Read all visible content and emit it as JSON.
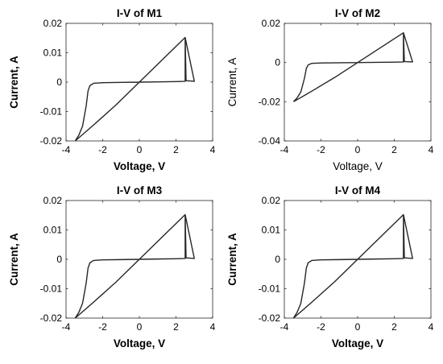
{
  "chart_data": [
    {
      "type": "line",
      "title": "I-V of M1",
      "xlabel": "Voltage, V",
      "ylabel": "Current, A",
      "xlim": [
        -4,
        4
      ],
      "ylim": [
        -0.02,
        0.02
      ],
      "xticks": [
        "-4",
        "-2",
        "0",
        "2",
        "4"
      ],
      "yticks": [
        "0.02",
        "0.01",
        "0",
        "-0.01",
        "-0.02"
      ],
      "grid": false,
      "bold_labels": true,
      "series": [
        {
          "x": [
            -3.5,
            -3.3,
            -3.1,
            -2.9,
            -2.8,
            -2.7,
            -2.5,
            -2.0,
            -1.0,
            0,
            1.0,
            2.0,
            2.5,
            2.5,
            2.55,
            3.0,
            2.5,
            1.25,
            0,
            -1.25,
            -2.5,
            -3.5
          ],
          "y": [
            -0.02,
            -0.018,
            -0.015,
            -0.008,
            -0.003,
            -0.0012,
            -0.0004,
            -0.0002,
            -0.0001,
            0,
            0.0001,
            0.0002,
            0.0003,
            0.0152,
            0.0005,
            0.0003,
            0.0152,
            0.0076,
            0,
            -0.0076,
            -0.0146,
            -0.02
          ]
        }
      ]
    },
    {
      "type": "line",
      "title": "I-V of M2",
      "xlabel": "Voltage, V",
      "ylabel": "Current, A",
      "xlim": [
        -4,
        4
      ],
      "ylim": [
        -0.04,
        0.02
      ],
      "xticks": [
        "-4",
        "-2",
        "0",
        "2",
        "4"
      ],
      "yticks": [
        "0.02",
        "0",
        "-0.02",
        "-0.04"
      ],
      "grid": false,
      "bold_labels": false,
      "series": [
        {
          "x": [
            -3.5,
            -3.3,
            -3.1,
            -2.9,
            -2.8,
            -2.7,
            -2.5,
            -2.0,
            -1.0,
            0,
            1.0,
            2.0,
            2.5,
            2.5,
            2.55,
            3.0,
            2.5,
            1.25,
            0,
            -1.25,
            -2.5,
            -3.5
          ],
          "y": [
            -0.02,
            -0.018,
            -0.015,
            -0.008,
            -0.003,
            -0.0012,
            -0.0004,
            -0.0002,
            -0.0001,
            0,
            0.0001,
            0.0002,
            0.0003,
            0.0152,
            0.0005,
            0.0003,
            0.0152,
            0.0076,
            0,
            -0.0076,
            -0.0146,
            -0.02
          ]
        }
      ]
    },
    {
      "type": "line",
      "title": "I-V of M3",
      "xlabel": "Voltage, V",
      "ylabel": "Current, A",
      "xlim": [
        -4,
        4
      ],
      "ylim": [
        -0.02,
        0.02
      ],
      "xticks": [
        "-4",
        "-2",
        "0",
        "2",
        "4"
      ],
      "yticks": [
        "0.02",
        "0.01",
        "0",
        "-0.01",
        "-0.02"
      ],
      "grid": false,
      "bold_labels": true,
      "series": [
        {
          "x": [
            -3.5,
            -3.3,
            -3.1,
            -2.9,
            -2.8,
            -2.7,
            -2.5,
            -2.0,
            -1.0,
            0,
            1.0,
            2.0,
            2.5,
            2.5,
            2.55,
            3.0,
            2.5,
            1.25,
            0,
            -1.25,
            -2.5,
            -3.5
          ],
          "y": [
            -0.02,
            -0.018,
            -0.015,
            -0.008,
            -0.003,
            -0.0012,
            -0.0004,
            -0.0002,
            -0.0001,
            0,
            0.0001,
            0.0002,
            0.0003,
            0.0152,
            0.0005,
            0.0003,
            0.0152,
            0.0076,
            0,
            -0.0076,
            -0.0146,
            -0.02
          ]
        }
      ]
    },
    {
      "type": "line",
      "title": "I-V of M4",
      "xlabel": "Voltage, V",
      "ylabel": "Current, A",
      "xlim": [
        -4,
        4
      ],
      "ylim": [
        -0.02,
        0.02
      ],
      "xticks": [
        "-4",
        "-2",
        "0",
        "2",
        "4"
      ],
      "yticks": [
        "0.02",
        "0.01",
        "0",
        "-0.01",
        "-0.02"
      ],
      "grid": false,
      "bold_labels": true,
      "series": [
        {
          "x": [
            -3.5,
            -3.3,
            -3.1,
            -2.9,
            -2.8,
            -2.7,
            -2.5,
            -2.0,
            -1.0,
            0,
            1.0,
            2.0,
            2.5,
            2.5,
            2.55,
            3.0,
            2.5,
            1.25,
            0,
            -1.25,
            -2.5,
            -3.5
          ],
          "y": [
            -0.02,
            -0.018,
            -0.015,
            -0.008,
            -0.003,
            -0.0012,
            -0.0004,
            -0.0002,
            -0.0001,
            0,
            0.0001,
            0.0002,
            0.0003,
            0.0152,
            0.0005,
            0.0003,
            0.0152,
            0.0076,
            0,
            -0.0076,
            -0.0146,
            -0.02
          ]
        }
      ]
    }
  ]
}
